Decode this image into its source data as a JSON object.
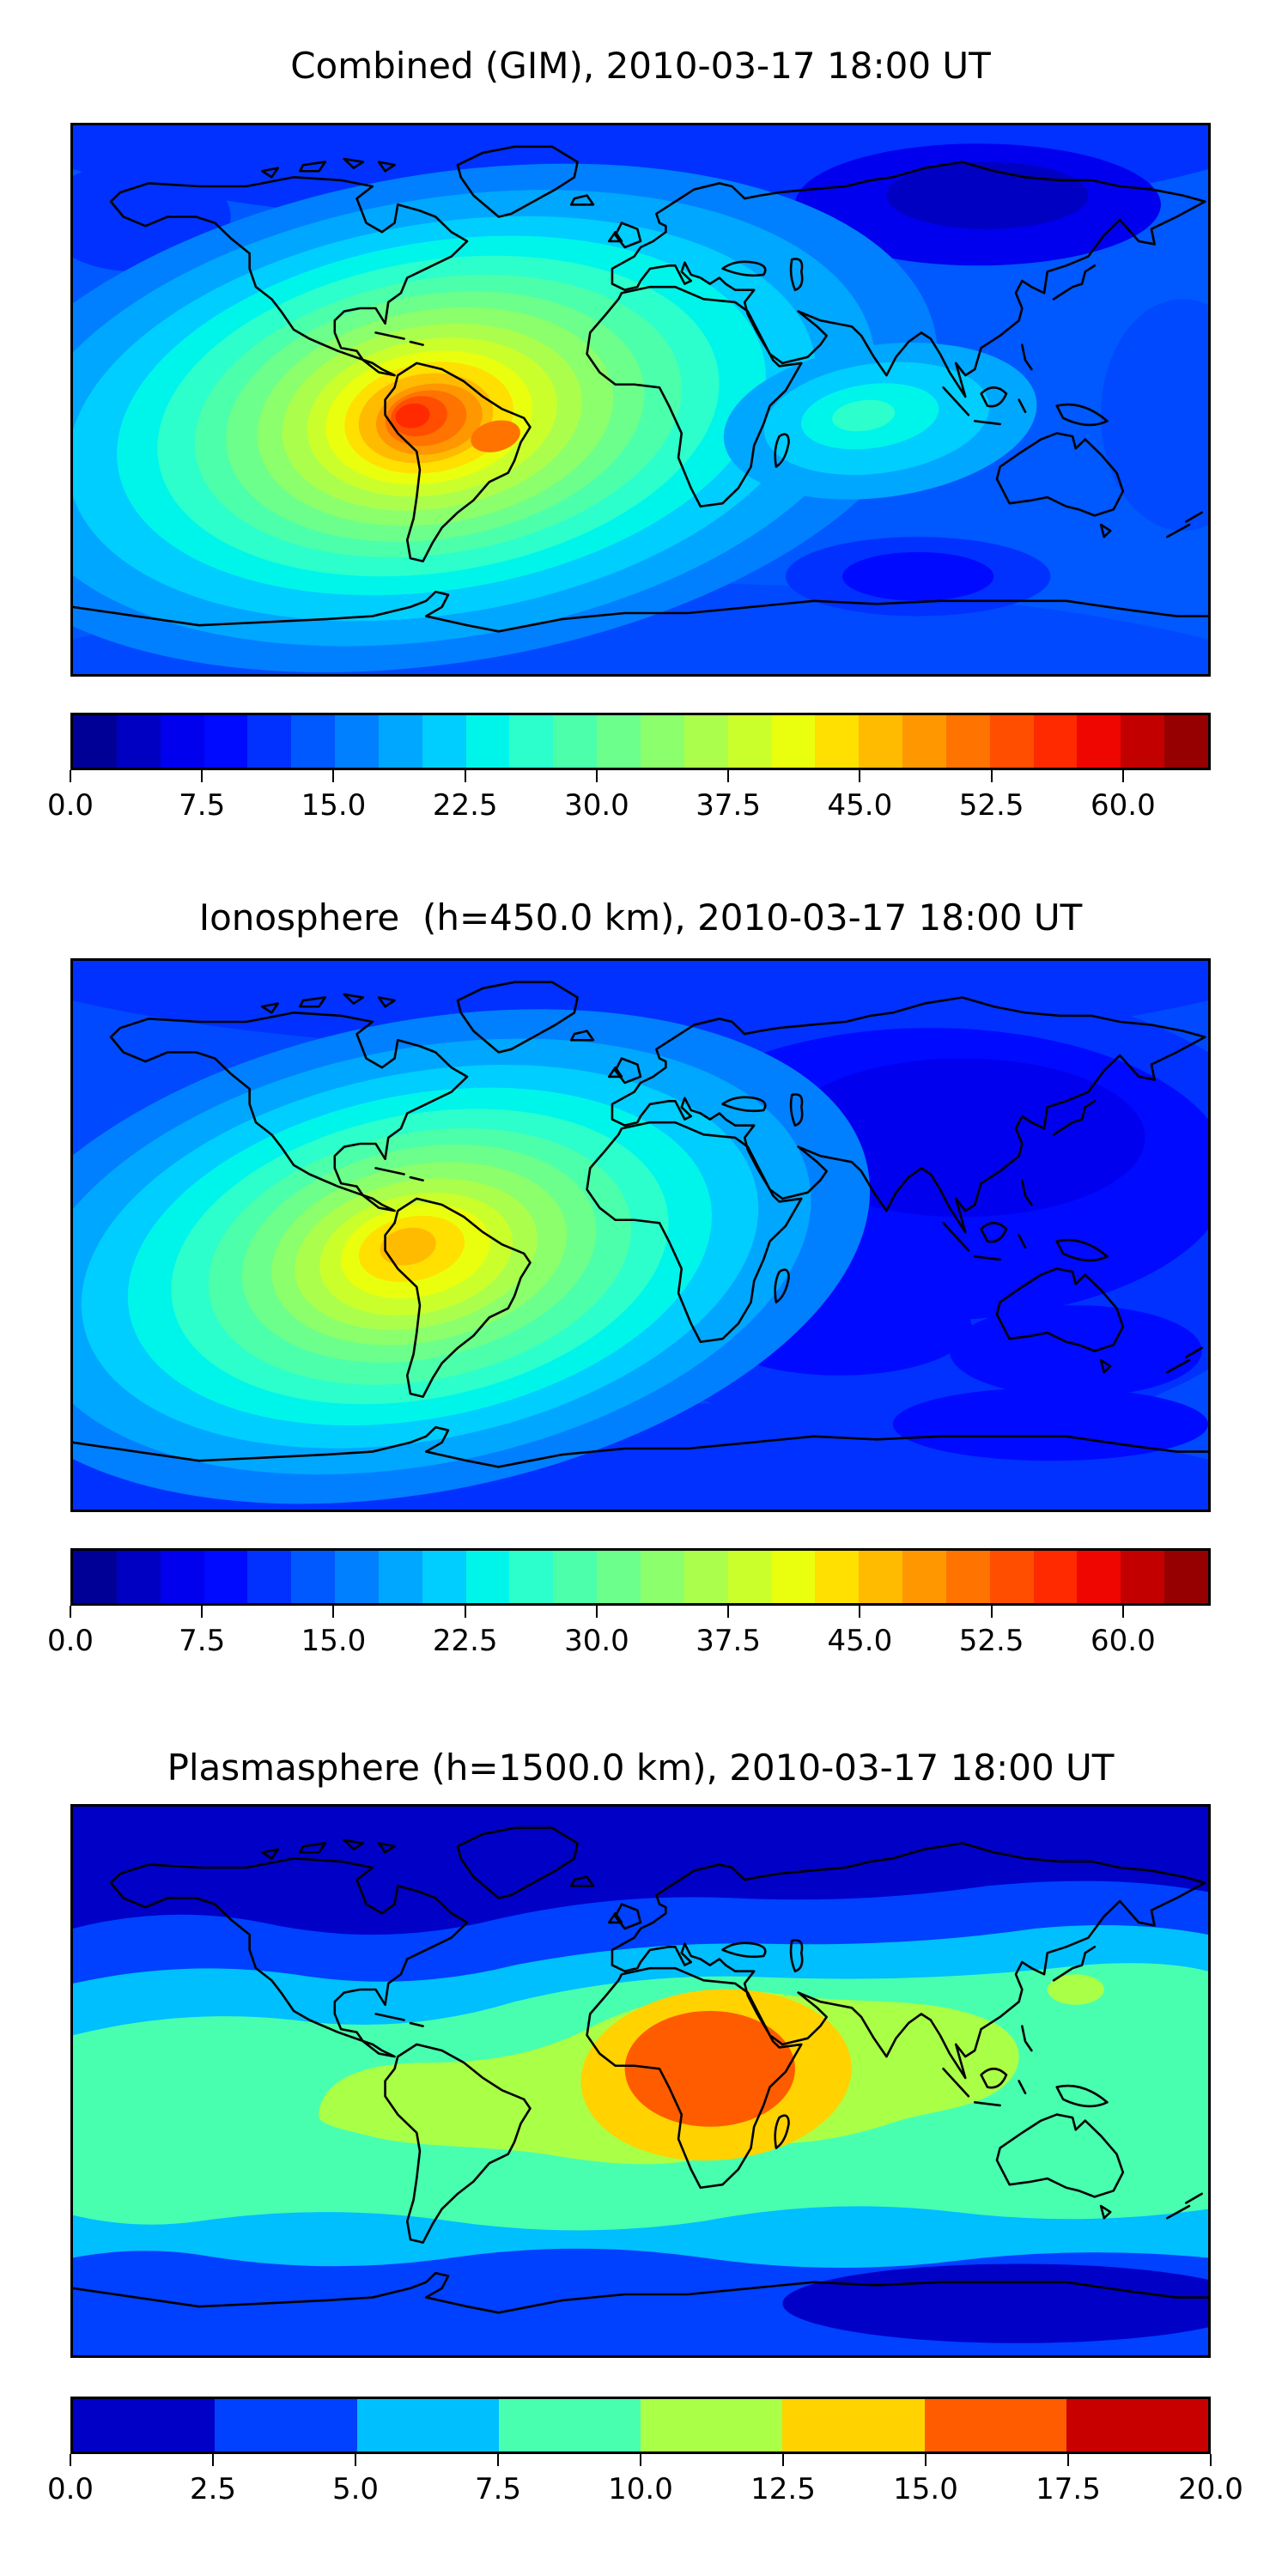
{
  "figure": {
    "background": "#ffffff",
    "frame_color": "#000000",
    "coastline_color": "#000000",
    "colormap_name": "jet (discrete filled contours)"
  },
  "chart_data": [
    {
      "type": "heatmap",
      "title": "Combined (GIM), 2010-03-17 18:00 UT",
      "projection": "equirectangular world map, lon -180..180, lat -90..90",
      "grid": "off",
      "colorbar": {
        "orientation": "horizontal",
        "vmin": 0.0,
        "vmax": 65.0,
        "level_step": 2.5,
        "n_segments": 26,
        "tick_labels": [
          "0.0",
          "7.5",
          "15.0",
          "22.5",
          "30.0",
          "37.5",
          "45.0",
          "52.5",
          "60.0"
        ],
        "tick_values": [
          0.0,
          7.5,
          15.0,
          22.5,
          30.0,
          37.5,
          45.0,
          52.5,
          60.0
        ],
        "segment_colors": [
          "#000096",
          "#0000c2",
          "#0000ef",
          "#000aff",
          "#0031ff",
          "#0058ff",
          "#0080ff",
          "#00a7ff",
          "#00ceff",
          "#00f5ea",
          "#2cffcb",
          "#4cffab",
          "#6cff8b",
          "#8bff6c",
          "#abff4c",
          "#cbff2c",
          "#eaff0d",
          "#ffe000",
          "#ffbb00",
          "#ff9700",
          "#ff7300",
          "#ff4e00",
          "#ff2a00",
          "#ef0600",
          "#c20000",
          "#960000"
        ]
      },
      "features": [
        {
          "name": "primary-maximum",
          "lon": -70,
          "lat": -5,
          "approx_value": 57,
          "note": "red-orange core over northern South America"
        },
        {
          "name": "equatorial-plume",
          "lon_range": [
            -150,
            20
          ],
          "lat_center": -8,
          "approx_value_range": [
            25,
            50
          ],
          "note": "tilted yellow-orange plume from eastern Pacific across Brazil toward west Africa"
        },
        {
          "name": "secondary-enhancement",
          "lon": 75,
          "lat": -3,
          "approx_value": 25,
          "note": "cyan-mint patch over Indian Ocean"
        },
        {
          "name": "minimum",
          "lon": 110,
          "lat": 65,
          "approx_value": 4,
          "note": "dark navy region over Siberia / high northern latitudes"
        }
      ]
    },
    {
      "type": "heatmap",
      "title": "Ionosphere  (h=450.0 km), 2010-03-17 18:00 UT",
      "projection": "equirectangular world map, lon -180..180, lat -90..90",
      "grid": "off",
      "colorbar": {
        "orientation": "horizontal",
        "vmin": 0.0,
        "vmax": 65.0,
        "level_step": 2.5,
        "n_segments": 26,
        "tick_labels": [
          "0.0",
          "7.5",
          "15.0",
          "22.5",
          "30.0",
          "37.5",
          "45.0",
          "52.5",
          "60.0"
        ],
        "tick_values": [
          0.0,
          7.5,
          15.0,
          22.5,
          30.0,
          37.5,
          45.0,
          52.5,
          60.0
        ],
        "segment_colors": [
          "#000096",
          "#0000c2",
          "#0000ef",
          "#000aff",
          "#0031ff",
          "#0058ff",
          "#0080ff",
          "#00a7ff",
          "#00ceff",
          "#00f5ea",
          "#2cffcb",
          "#4cffab",
          "#6cff8b",
          "#8bff6c",
          "#abff4c",
          "#cbff2c",
          "#eaff0d",
          "#ffe000",
          "#ffbb00",
          "#ff9700",
          "#ff7300",
          "#ff4e00",
          "#ff2a00",
          "#ef0600",
          "#c20000",
          "#960000"
        ]
      },
      "features": [
        {
          "name": "primary-maximum",
          "lon": -73,
          "lat": -3,
          "approx_value": 45,
          "note": "gold-orange core over northwestern South America"
        },
        {
          "name": "broad-enhancement",
          "lon_range": [
            -110,
            -20
          ],
          "lat_range": [
            -35,
            10
          ],
          "approx_value_range": [
            20,
            40
          ],
          "note": "yellow-green region covering South America and adjacent oceans"
        },
        {
          "name": "minimum",
          "lon": 80,
          "lat": 45,
          "approx_value": 3,
          "note": "dark navy region over central and eastern Asia"
        }
      ]
    },
    {
      "type": "heatmap",
      "title": "Plasmasphere (h=1500.0 km), 2010-03-17 18:00 UT",
      "projection": "equirectangular world map, lon -180..180, lat -90..90",
      "grid": "off",
      "colorbar": {
        "orientation": "horizontal",
        "vmin": 0.0,
        "vmax": 20.0,
        "level_step": 2.5,
        "n_segments": 8,
        "tick_labels": [
          "0.0",
          "2.5",
          "5.0",
          "7.5",
          "10.0",
          "12.5",
          "15.0",
          "17.5",
          "20.0"
        ],
        "tick_values": [
          0.0,
          2.5,
          5.0,
          7.5,
          10.0,
          12.5,
          15.0,
          17.5,
          20.0
        ],
        "segment_colors": [
          "#0000c7",
          "#0040ff",
          "#00bfff",
          "#48ffaf",
          "#aaff47",
          "#ffd200",
          "#ff5c00",
          "#c80000"
        ]
      },
      "features": [
        {
          "name": "primary-maximum",
          "lon": 22,
          "lat": 3,
          "approx_value": 16,
          "note": "deep orange core over central Africa ringed by gold band"
        },
        {
          "name": "equatorial-band",
          "lon_range": [
            -100,
            130
          ],
          "lat_range": [
            -25,
            25
          ],
          "approx_value_range": [
            10,
            12.5
          ],
          "note": "yellow-green band from South America across Africa to southeast Asia"
        },
        {
          "name": "midlatitude-band",
          "lat_range": [
            -45,
            45
          ],
          "approx_value_range": [
            7.5,
            10
          ],
          "note": "spring-green zonal band"
        },
        {
          "name": "minimum",
          "region": "high northern latitudes",
          "approx_value": 2,
          "note": "navy cap poleward of ~55N and patch near southern high latitudes"
        }
      ]
    }
  ]
}
